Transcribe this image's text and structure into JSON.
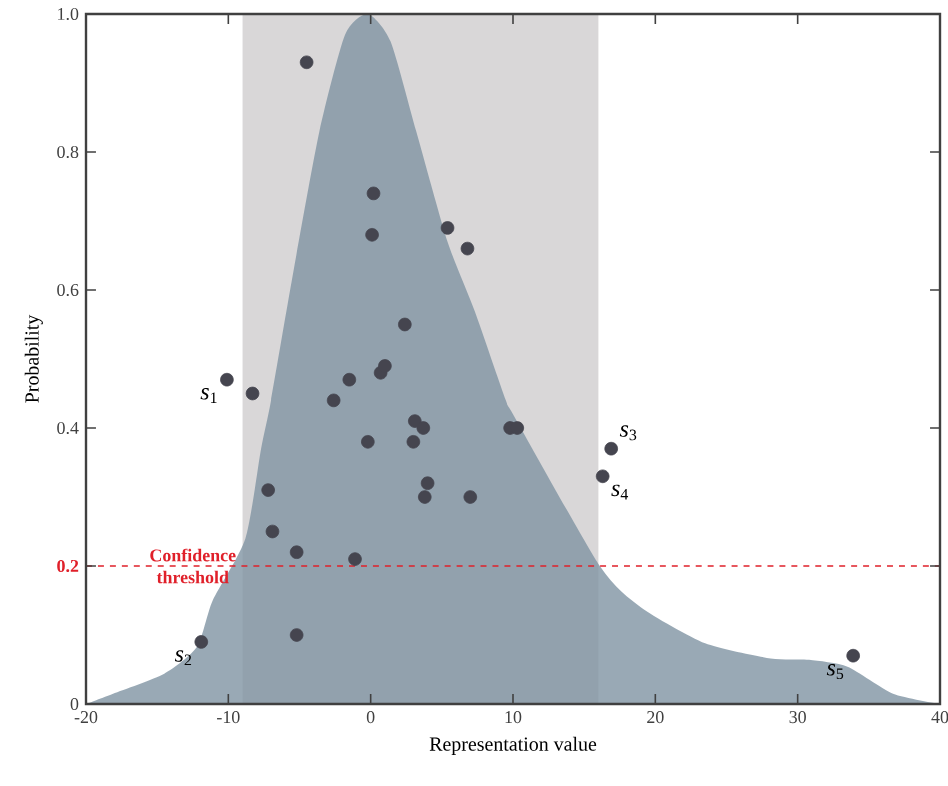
{
  "chart_data": {
    "type": "scatter",
    "xlabel": "Representation value",
    "ylabel": "Probability",
    "xlim": [
      -20,
      40
    ],
    "ylim": [
      0,
      1
    ],
    "xticks": [
      -20,
      -10,
      0,
      10,
      20,
      30,
      40
    ],
    "yticks": [
      0,
      0.2,
      0.4,
      0.6,
      {
        "value": 1,
        "label": "1.0"
      },
      0.8
    ],
    "grid": false,
    "series": [
      {
        "type": "area",
        "color": "#7f93a3",
        "x": [
          -20,
          -18.1,
          -14.5,
          -12.2,
          -11.1,
          -8.8,
          -7.7,
          -7.0,
          -5.4,
          -3.6,
          -1.8,
          -0.2,
          1.4,
          3.2,
          5.4,
          7.3,
          9.5,
          10,
          16.1,
          19,
          23.5,
          28.1,
          30.8,
          33.5,
          36.7,
          40
        ],
        "values": [
          0,
          0.015,
          0.044,
          0.083,
          0.15,
          0.24,
          0.37,
          0.44,
          0.63,
          0.83,
          0.97,
          1.0,
          0.96,
          0.83,
          0.67,
          0.57,
          0.44,
          0.42,
          0.2,
          0.14,
          0.088,
          0.066,
          0.064,
          0.054,
          0.015,
          0
        ]
      },
      {
        "color": "#45454f",
        "x": [
          -4.5,
          0.2,
          0.1,
          5.4,
          6.8,
          2.4,
          0.7,
          1.0,
          -1.5,
          -10.1,
          -8.3,
          -2.6,
          3.1,
          3.7,
          -0.2,
          3.0,
          4.0,
          3.8,
          7.0,
          -7.2,
          -6.9,
          -5.2,
          -1.1,
          -5.2,
          -11.9,
          9.8,
          10.3,
          16.9,
          16.3,
          33.9
        ],
        "values": [
          0.93,
          0.74,
          0.68,
          0.69,
          0.66,
          0.55,
          0.48,
          0.49,
          0.47,
          0.47,
          0.45,
          0.44,
          0.41,
          0.4,
          0.38,
          0.38,
          0.32,
          0.3,
          0.3,
          0.31,
          0.25,
          0.22,
          0.21,
          0.1,
          0.09,
          0.4,
          0.4,
          0.37,
          0.33,
          0.07
        ]
      }
    ],
    "bands": [
      {
        "axis": "x",
        "from": -9,
        "to": 16,
        "color": "#d9d7d8"
      }
    ],
    "ref_lines": [
      {
        "axis": "y",
        "value": 0.2,
        "label": "Confidence threshold",
        "color": "#e0202a",
        "line_style": "dashed"
      }
    ],
    "annotations": [
      {
        "text": "*s*$_{1}$",
        "x": -10.1,
        "y": 0.47
      },
      {
        "text": "*s*$_{2}$",
        "x": -11.9,
        "y": 0.09
      },
      {
        "text": "*s*$_{3}$",
        "x": 16.9,
        "y": 0.37
      },
      {
        "text": "*s*$_{4}$",
        "x": 16.3,
        "y": 0.33
      },
      {
        "text": "*s*$_{5}$",
        "x": 33.9,
        "y": 0.07
      }
    ]
  }
}
